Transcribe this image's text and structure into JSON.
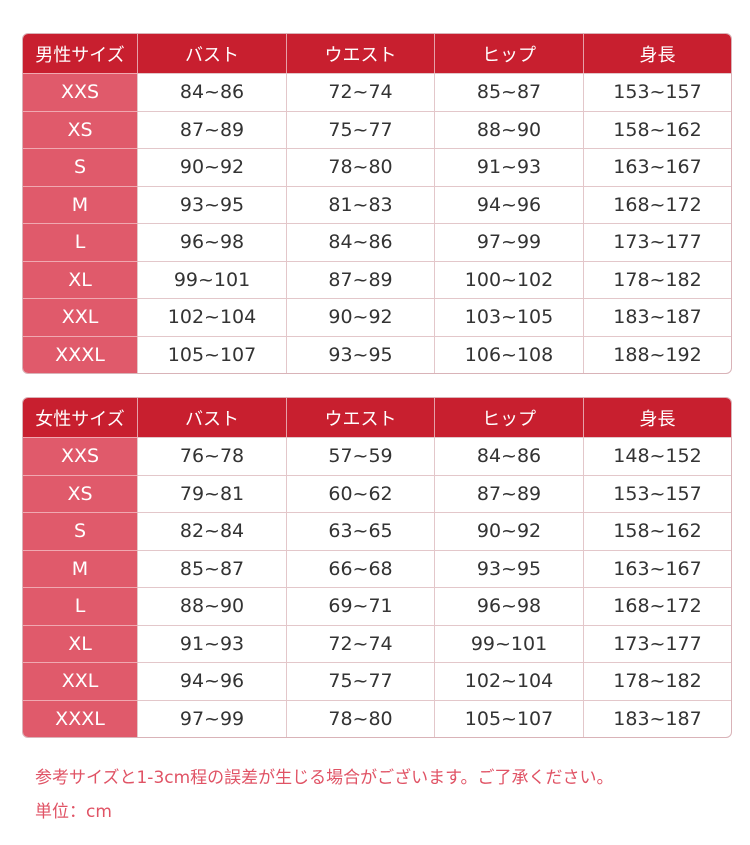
{
  "colors": {
    "header": "#c81f2f",
    "size_column": "#e05a6b",
    "note_text": "#e05365"
  },
  "tables": [
    {
      "headers": [
        "男性サイズ",
        "バスト",
        "ウエスト",
        "ヒップ",
        "身長"
      ],
      "rows": [
        [
          "XXS",
          "84~86",
          "72~74",
          "85~87",
          "153~157"
        ],
        [
          "XS",
          "87~89",
          "75~77",
          "88~90",
          "158~162"
        ],
        [
          "S",
          "90~92",
          "78~80",
          "91~93",
          "163~167"
        ],
        [
          "M",
          "93~95",
          "81~83",
          "94~96",
          "168~172"
        ],
        [
          "L",
          "96~98",
          "84~86",
          "97~99",
          "173~177"
        ],
        [
          "XL",
          "99~101",
          "87~89",
          "100~102",
          "178~182"
        ],
        [
          "XXL",
          "102~104",
          "90~92",
          "103~105",
          "183~187"
        ],
        [
          "XXXL",
          "105~107",
          "93~95",
          "106~108",
          "188~192"
        ]
      ]
    },
    {
      "headers": [
        "女性サイズ",
        "バスト",
        "ウエスト",
        "ヒップ",
        "身長"
      ],
      "rows": [
        [
          "XXS",
          "76~78",
          "57~59",
          "84~86",
          "148~152"
        ],
        [
          "XS",
          "79~81",
          "60~62",
          "87~89",
          "153~157"
        ],
        [
          "S",
          "82~84",
          "63~65",
          "90~92",
          "158~162"
        ],
        [
          "M",
          "85~87",
          "66~68",
          "93~95",
          "163~167"
        ],
        [
          "L",
          "88~90",
          "69~71",
          "96~98",
          "168~172"
        ],
        [
          "XL",
          "91~93",
          "72~74",
          "99~101",
          "173~177"
        ],
        [
          "XXL",
          "94~96",
          "75~77",
          "102~104",
          "178~182"
        ],
        [
          "XXXL",
          "97~99",
          "78~80",
          "105~107",
          "183~187"
        ]
      ]
    }
  ],
  "notes": {
    "tolerance": "参考サイズと1-3cm程の誤差が生じる場合がございます。ご了承ください。",
    "unit": "単位：cm"
  }
}
